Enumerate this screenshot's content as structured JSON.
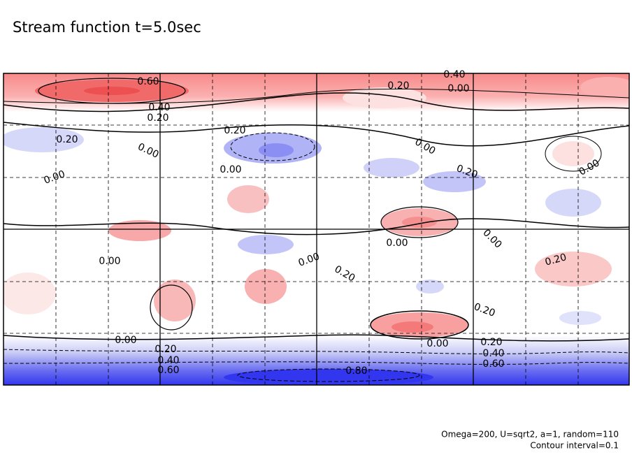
{
  "chart_data": {
    "type": "contour",
    "title": "Stream function t=5.0sec",
    "notes": [
      "Omega=200, U=sqrt2, a=1, random=110",
      "Contour interval=0.1"
    ],
    "contour_labels": [
      "0.60",
      "0.40",
      "0.20",
      "0.00",
      "0.40",
      "0.20",
      "0.20",
      "0.00",
      "0.20",
      "0.00",
      "0.20",
      "0.00",
      "0.00",
      "0.00",
      "0.00",
      "0.00",
      "0.00",
      "0.00",
      "0.20",
      "0.20",
      "0.20",
      "0.00",
      "0.20",
      "0.40",
      "0.60",
      "0.00",
      "0.20",
      "0.40",
      "0.60",
      "0.80"
    ]
  }
}
